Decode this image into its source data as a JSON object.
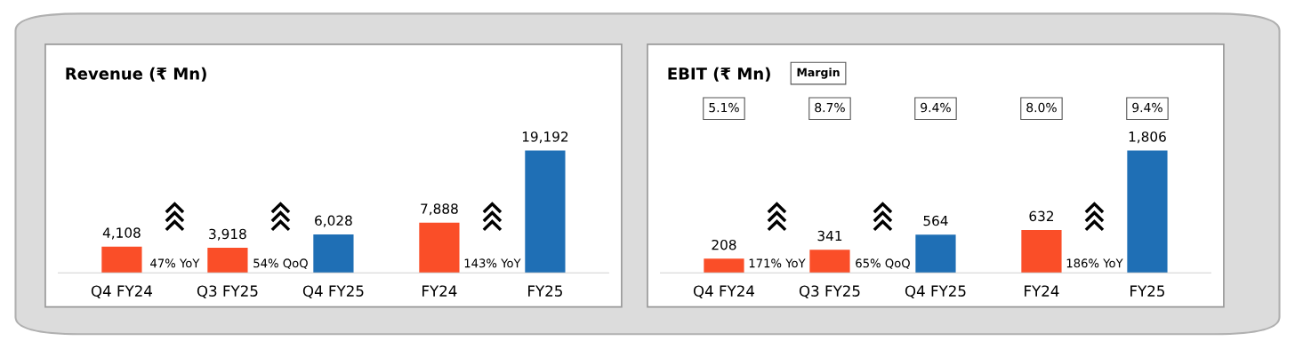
{
  "chart_data": [
    {
      "type": "bar",
      "title": "Revenue (₹ Mn)",
      "categories": [
        "Q4 FY24",
        "Q3 FY25",
        "Q4 FY25",
        "FY24",
        "FY25"
      ],
      "values": [
        4108,
        3918,
        6028,
        7888,
        19192
      ],
      "value_labels": [
        "4,108",
        "3,918",
        "6,028",
        "7,888",
        "19,192"
      ],
      "colors": [
        "#fa4e28",
        "#fa4e28",
        "#1f6fb5",
        "#fa4e28",
        "#1f6fb5"
      ],
      "annotations": [
        "47% YoY",
        "54% QoQ",
        "143% YoY"
      ],
      "grid": false
    },
    {
      "type": "bar",
      "title": "EBIT (₹ Mn)",
      "legend_title": "Margin",
      "categories": [
        "Q4 FY24",
        "Q3 FY25",
        "Q4 FY25",
        "FY24",
        "FY25"
      ],
      "values": [
        208,
        341,
        564,
        632,
        1806
      ],
      "value_labels": [
        "208",
        "341",
        "564",
        "632",
        "1,806"
      ],
      "colors": [
        "#fa4e28",
        "#fa4e28",
        "#1f6fb5",
        "#fa4e28",
        "#1f6fb5"
      ],
      "annotations": [
        "5.1%",
        "8.7%",
        "9.4%",
        "8.0%",
        "9.4%",
        "171% YoY",
        "65% QoQ",
        "186% YoY"
      ],
      "grid": false
    }
  ]
}
